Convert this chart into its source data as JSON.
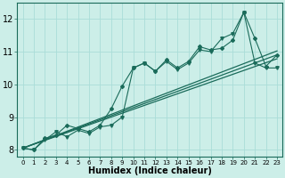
{
  "xlabel": "Humidex (Indice chaleur)",
  "bg_color": "#cceee8",
  "grid_color": "#aaddd8",
  "line_color": "#1a6b5a",
  "x_values": [
    0,
    1,
    2,
    3,
    4,
    5,
    6,
    7,
    8,
    9,
    10,
    11,
    12,
    13,
    14,
    15,
    16,
    17,
    18,
    19,
    20,
    21,
    22,
    23
  ],
  "y_main": [
    8.05,
    8.0,
    8.35,
    8.45,
    8.75,
    8.65,
    8.55,
    8.75,
    9.25,
    9.95,
    10.5,
    10.65,
    10.4,
    10.75,
    10.5,
    10.7,
    11.15,
    11.05,
    11.1,
    11.35,
    12.2,
    11.4,
    10.55,
    10.9
  ],
  "y_secondary": [
    8.05,
    8.0,
    8.3,
    8.55,
    8.4,
    8.6,
    8.5,
    8.7,
    8.75,
    9.0,
    10.5,
    10.65,
    10.4,
    10.7,
    10.45,
    10.65,
    11.05,
    11.0,
    11.4,
    11.55,
    12.2,
    10.65,
    10.5,
    10.5
  ],
  "reg_line_start": 8.05,
  "reg_line_end_center": 10.9,
  "reg_offsets": [
    -0.12,
    0.0,
    0.12
  ],
  "ylim": [
    7.8,
    12.5
  ],
  "yticks": [
    8,
    9,
    10,
    11,
    12
  ],
  "xticks": [
    0,
    1,
    2,
    3,
    4,
    5,
    6,
    7,
    8,
    9,
    10,
    11,
    12,
    13,
    14,
    15,
    16,
    17,
    18,
    19,
    20,
    21,
    22,
    23
  ],
  "xlabel_fontsize": 7,
  "xtick_fontsize": 5,
  "ytick_fontsize": 7
}
